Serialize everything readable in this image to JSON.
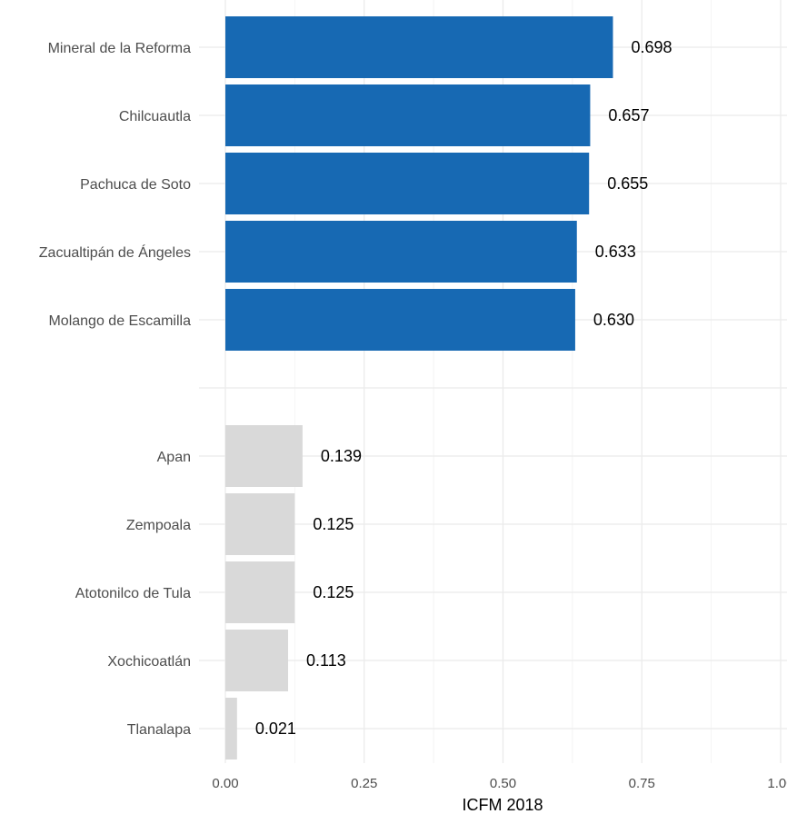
{
  "chart_data": {
    "type": "bar",
    "orientation": "horizontal",
    "xlabel": "ICFM 2018",
    "ylabel": "",
    "xlim": [
      0,
      1.0
    ],
    "x_ticks": [
      0.0,
      0.25,
      0.5,
      0.75,
      1.0
    ],
    "x_tick_labels": [
      "0.00",
      "0.25",
      "0.50",
      "0.75",
      "1.00"
    ],
    "grid": true,
    "legend": "none",
    "groups": [
      {
        "color": "#1769b3",
        "bars": [
          {
            "category": "Mineral de la Reforma",
            "value": 0.698,
            "label": "0.698"
          },
          {
            "category": "Chilcuautla",
            "value": 0.657,
            "label": "0.657"
          },
          {
            "category": "Pachuca de Soto",
            "value": 0.655,
            "label": "0.655"
          },
          {
            "category": "Zacualtipán de Ángeles",
            "value": 0.633,
            "label": "0.633"
          },
          {
            "category": "Molango de Escamilla",
            "value": 0.63,
            "label": "0.630"
          }
        ]
      },
      {
        "color": "#d9d9d9",
        "bars": [
          {
            "category": "Apan",
            "value": 0.139,
            "label": "0.139"
          },
          {
            "category": "Zempoala",
            "value": 0.125,
            "label": "0.125"
          },
          {
            "category": "Atotonilco de Tula",
            "value": 0.125,
            "label": "0.125"
          },
          {
            "category": "Xochicoatlán",
            "value": 0.113,
            "label": "0.113"
          },
          {
            "category": "Tlanalapa",
            "value": 0.021,
            "label": "0.021"
          }
        ]
      }
    ]
  }
}
